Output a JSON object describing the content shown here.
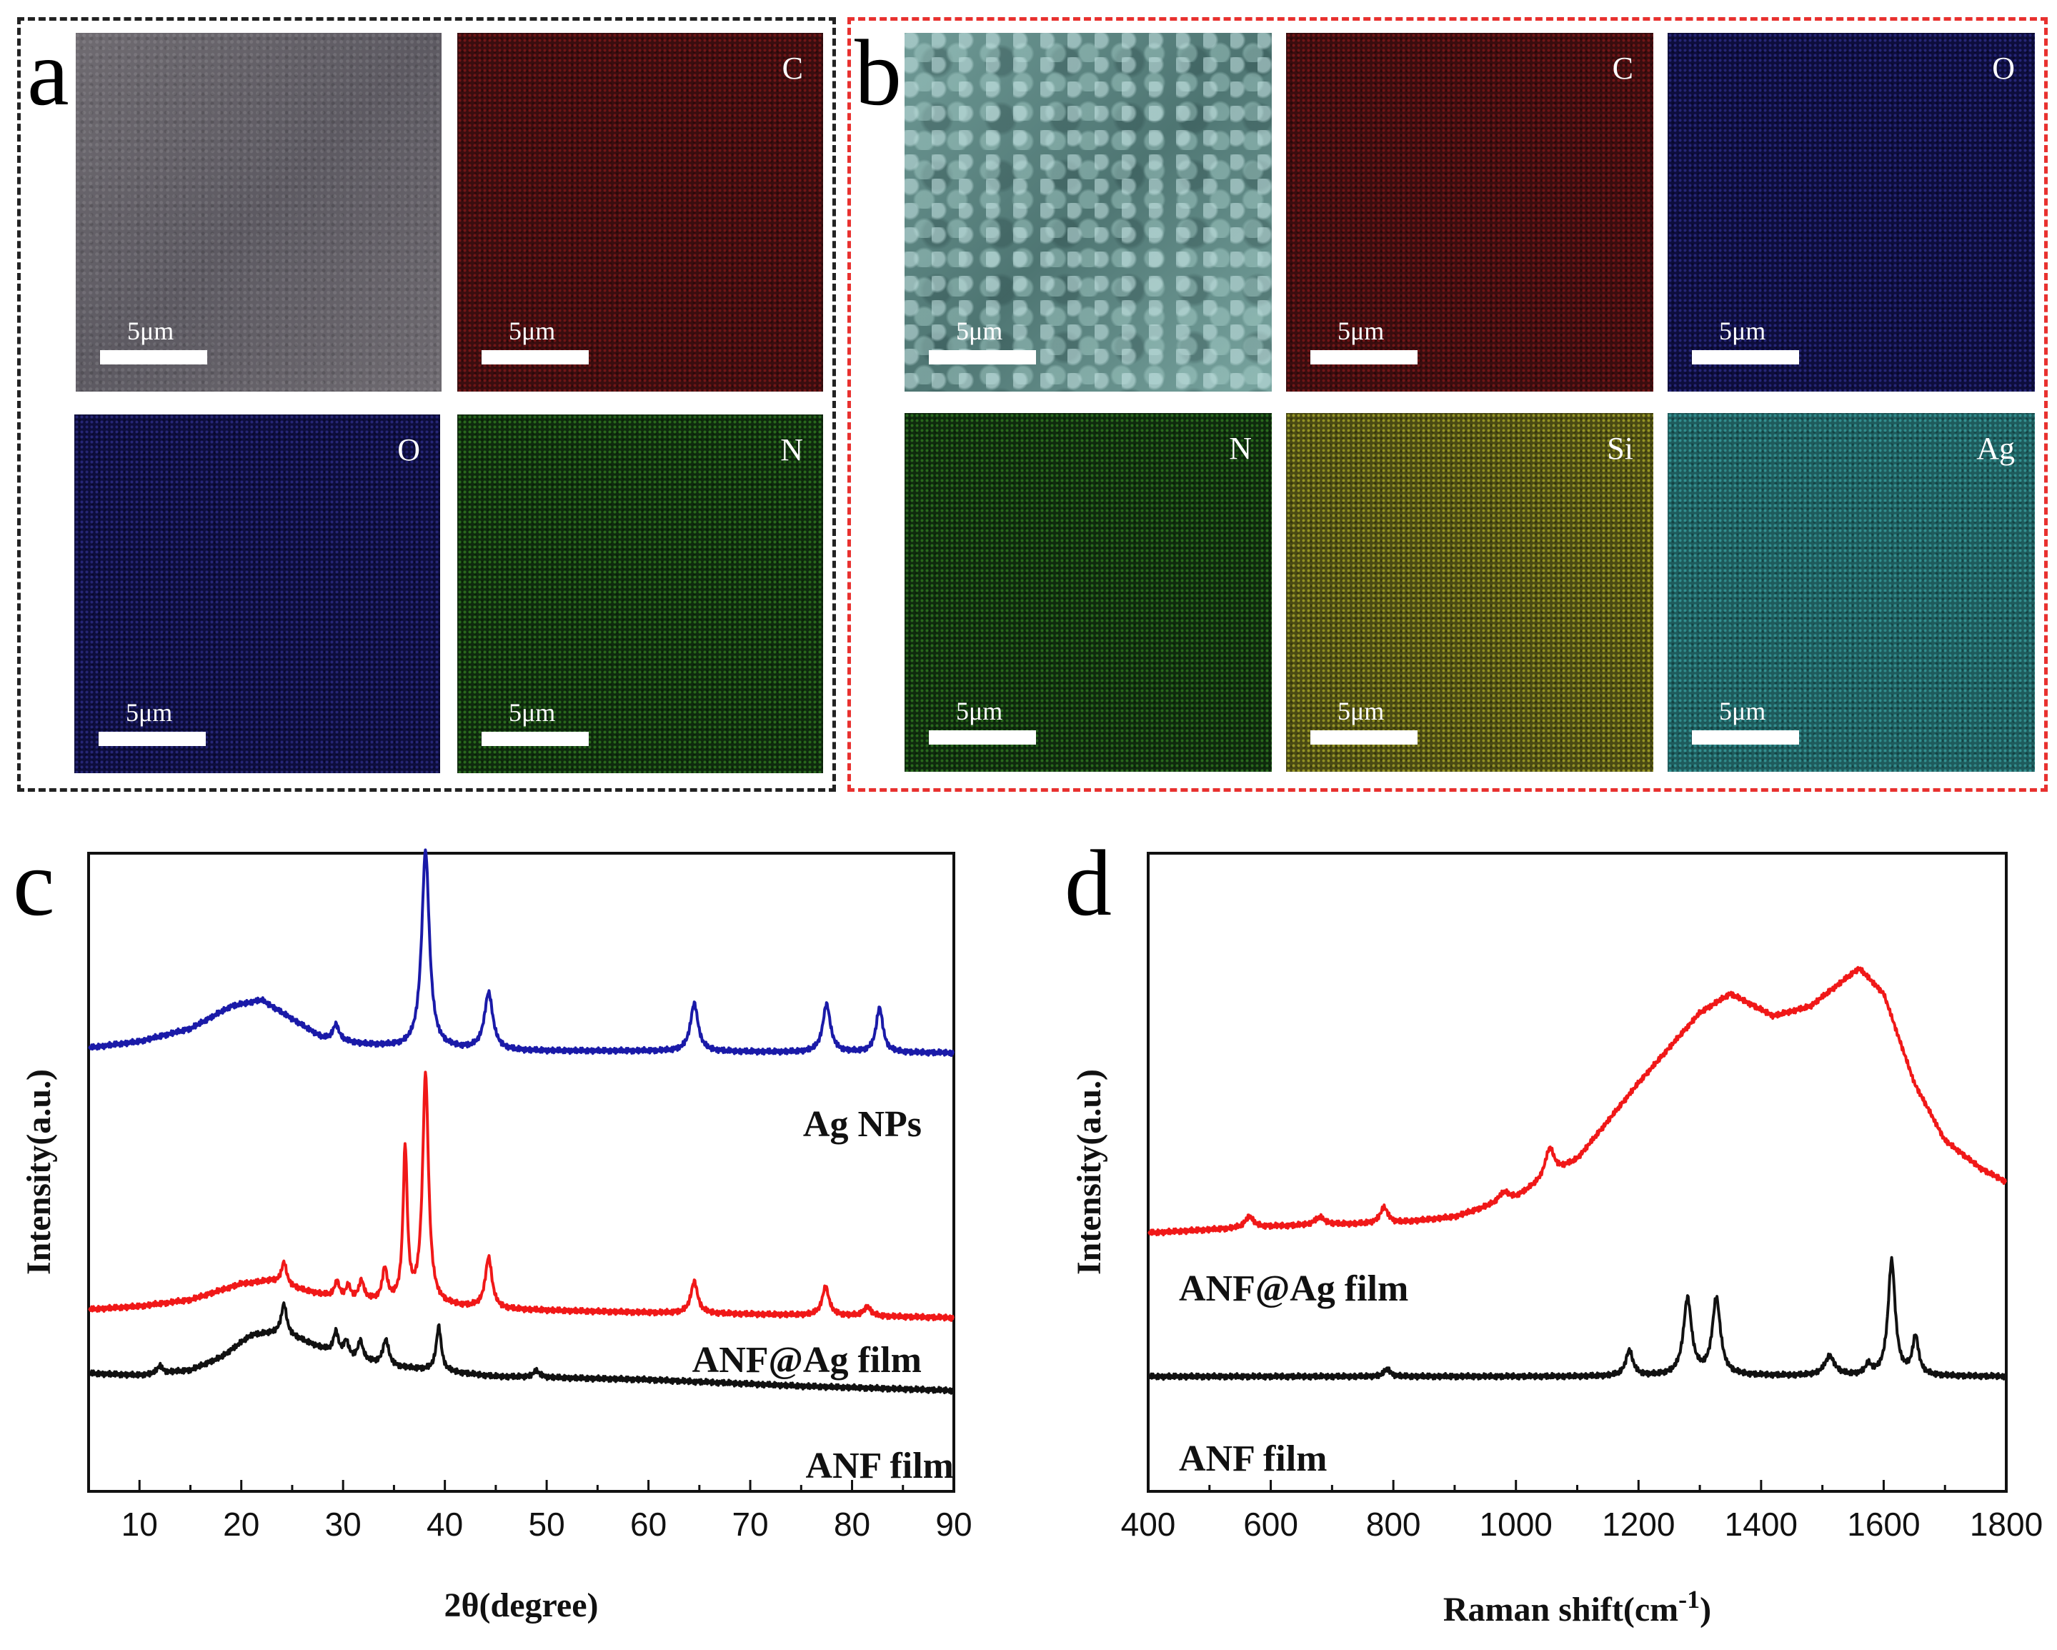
{
  "panels": {
    "a": {
      "letter": "a",
      "maps": [
        {
          "element": "",
          "scale_bar": "5μm",
          "kind": "se"
        },
        {
          "element": "C",
          "scale_bar": "5μm",
          "kind": "c"
        },
        {
          "element": "O",
          "scale_bar": "5μm",
          "kind": "o"
        },
        {
          "element": "N",
          "scale_bar": "5μm",
          "kind": "n"
        }
      ]
    },
    "b": {
      "letter": "b",
      "maps": [
        {
          "element": "",
          "scale_bar": "5μm",
          "kind": "seb"
        },
        {
          "element": "C",
          "scale_bar": "5μm",
          "kind": "c"
        },
        {
          "element": "O",
          "scale_bar": "5μm",
          "kind": "o"
        },
        {
          "element": "N",
          "scale_bar": "5μm",
          "kind": "n"
        },
        {
          "element": "Si",
          "scale_bar": "5μm",
          "kind": "si"
        },
        {
          "element": "Ag",
          "scale_bar": "5μm",
          "kind": "ag"
        }
      ]
    }
  },
  "colors": {
    "ag_nps": "#1a1aa8",
    "anf_ag": "#f01818",
    "anf": "#111111",
    "frame_a": "#222222",
    "frame_b": "#e8312f"
  },
  "chart_data": [
    {
      "panel": "c",
      "type": "line",
      "xlabel": "2θ(degree)",
      "ylabel": "Intensity(a.u.)",
      "xlim": [
        5,
        90
      ],
      "ylim": [
        0,
        100
      ],
      "xticks": [
        10,
        20,
        30,
        40,
        50,
        60,
        70,
        80,
        90
      ],
      "series": [
        {
          "name": "Ag NPs",
          "color": "#1a1aa8",
          "baseline": [
            [
              5,
              69.5
            ],
            [
              10,
              70.5
            ],
            [
              15,
              72.5
            ],
            [
              19,
              76
            ],
            [
              22,
              77
            ],
            [
              25,
              74
            ],
            [
              28,
              71
            ],
            [
              32,
              70
            ],
            [
              36,
              69.5
            ],
            [
              45,
              69
            ],
            [
              60,
              69
            ],
            [
              75,
              68.8
            ],
            [
              90,
              68.7
            ]
          ],
          "peaks": [
            [
              29.3,
              2.5,
              0.35
            ],
            [
              38.1,
              31,
              0.45
            ],
            [
              44.3,
              9,
              0.5
            ],
            [
              64.5,
              7.5,
              0.45
            ],
            [
              77.5,
              7.5,
              0.45
            ],
            [
              82.7,
              7,
              0.4
            ]
          ]
        },
        {
          "name": "ANF@Ag film",
          "color": "#f01818",
          "baseline": [
            [
              5,
              28.5
            ],
            [
              10,
              29
            ],
            [
              15,
              30
            ],
            [
              20,
              32.5
            ],
            [
              23,
              33
            ],
            [
              26,
              31.5
            ],
            [
              30,
              30
            ],
            [
              35,
              29.5
            ],
            [
              45,
              28.5
            ],
            [
              60,
              28
            ],
            [
              80,
              27.5
            ],
            [
              90,
              27.2
            ]
          ],
          "peaks": [
            [
              24.2,
              3.5,
              0.3
            ],
            [
              29.4,
              2.5,
              0.3
            ],
            [
              30.5,
              2,
              0.3
            ],
            [
              31.8,
              3,
              0.3
            ],
            [
              34.1,
              5,
              0.3
            ],
            [
              36.1,
              24,
              0.25
            ],
            [
              38.1,
              36,
              0.35
            ],
            [
              44.3,
              8,
              0.4
            ],
            [
              64.5,
              5,
              0.4
            ],
            [
              77.4,
              4.5,
              0.4
            ],
            [
              81.5,
              1.5,
              0.4
            ]
          ]
        },
        {
          "name": "ANF film",
          "color": "#111111",
          "baseline": [
            [
              5,
              18.5
            ],
            [
              10,
              18.2
            ],
            [
              15,
              19
            ],
            [
              18,
              21
            ],
            [
              21,
              24.5
            ],
            [
              24,
              25
            ],
            [
              27,
              23
            ],
            [
              30,
              21
            ],
            [
              35,
              19.5
            ],
            [
              45,
              18
            ],
            [
              60,
              17.5
            ],
            [
              75,
              16.5
            ],
            [
              90,
              15.8
            ]
          ],
          "peaks": [
            [
              12,
              1.2,
              0.3
            ],
            [
              24.2,
              4.5,
              0.3
            ],
            [
              29.3,
              3.5,
              0.3
            ],
            [
              30.3,
              2.5,
              0.3
            ],
            [
              31.7,
              3,
              0.3
            ],
            [
              34.2,
              4,
              0.35
            ],
            [
              39.4,
              7,
              0.3
            ],
            [
              49,
              1,
              0.4
            ]
          ]
        }
      ],
      "annotations": [
        {
          "text": "Ag NPs",
          "series": "Ag NPs"
        },
        {
          "text": "ANF@Ag film",
          "series": "ANF@Ag film"
        },
        {
          "text": "ANF film",
          "series": "ANF film"
        }
      ]
    },
    {
      "panel": "d",
      "type": "line",
      "xlabel": "Raman shift(cm",
      "xlabel_sup": "-1",
      "xlabel_close": ")",
      "ylabel": "Intensity(a.u.)",
      "xlim": [
        400,
        1800
      ],
      "ylim": [
        0,
        100
      ],
      "xticks": [
        400,
        600,
        800,
        1000,
        1200,
        1400,
        1600,
        1800
      ],
      "series": [
        {
          "name": "ANF@Ag film",
          "color": "#f01818",
          "baseline": [
            [
              400,
              40.5
            ],
            [
              500,
              41
            ],
            [
              600,
              41.5
            ],
            [
              700,
              41.8
            ],
            [
              800,
              42
            ],
            [
              900,
              43
            ],
            [
              1000,
              46
            ],
            [
              1100,
              52
            ],
            [
              1200,
              64
            ],
            [
              1300,
              75
            ],
            [
              1350,
              78
            ],
            [
              1420,
              74.5
            ],
            [
              1480,
              76
            ],
            [
              1560,
              82
            ],
            [
              1600,
              78
            ],
            [
              1650,
              64
            ],
            [
              1700,
              55
            ],
            [
              1760,
              50.5
            ],
            [
              1800,
              48.5
            ]
          ],
          "peaks": [
            [
              565,
              1.8,
              8
            ],
            [
              680,
              1.2,
              10
            ],
            [
              785,
              2.5,
              8
            ],
            [
              980,
              1.5,
              10
            ],
            [
              1055,
              4.5,
              9
            ]
          ]
        },
        {
          "name": "ANF film",
          "color": "#111111",
          "baseline": [
            [
              400,
              18
            ],
            [
              800,
              18
            ],
            [
              1100,
              18
            ],
            [
              1400,
              18.1
            ],
            [
              1800,
              18
            ]
          ],
          "peaks": [
            [
              790,
              1.2,
              6
            ],
            [
              1185,
              4,
              7
            ],
            [
              1280,
              12,
              8
            ],
            [
              1327,
              12,
              8
            ],
            [
              1512,
              3,
              10
            ],
            [
              1575,
              1.5,
              6
            ],
            [
              1613,
              18,
              7
            ],
            [
              1652,
              6,
              6
            ]
          ]
        }
      ],
      "annotations": [
        {
          "text": "ANF@Ag film",
          "series": "ANF@Ag film"
        },
        {
          "text": "ANF film",
          "series": "ANF film"
        }
      ]
    }
  ]
}
